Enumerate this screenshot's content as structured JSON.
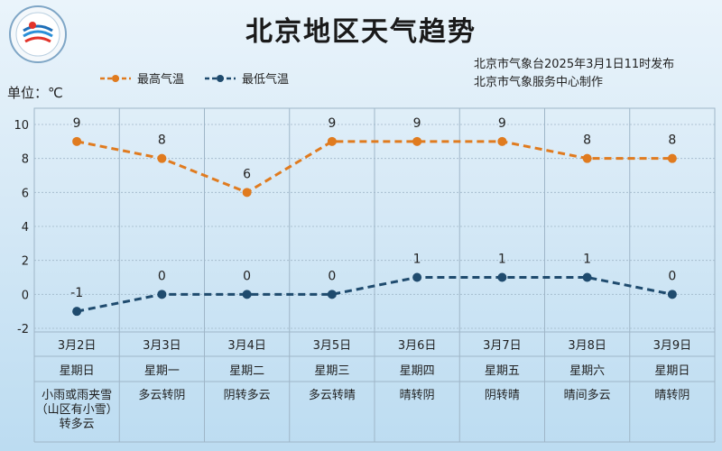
{
  "header": {
    "title": "北京地区天气趋势",
    "publisher_line1": "北京市气象台2025年3月1日11时发布",
    "publisher_line2": "北京市气象服务中心制作",
    "unit_label": "单位：℃"
  },
  "colors": {
    "high": "#e07b1f",
    "low": "#1f4b6e",
    "grid": "#9fb6c8"
  },
  "icons": [
    "meteorological-service-logo-icon"
  ],
  "chart_data": {
    "type": "line",
    "categories": [
      "3月2日",
      "3月3日",
      "3月4日",
      "3月5日",
      "3月6日",
      "3月7日",
      "3月8日",
      "3月9日"
    ],
    "weekdays": [
      "星期日",
      "星期一",
      "星期二",
      "星期三",
      "星期四",
      "星期五",
      "星期六",
      "星期日"
    ],
    "weather": [
      "小雨或雨夹雪\n（山区有小雪）\n转多云",
      "多云转阴",
      "阴转多云",
      "多云转晴",
      "晴转阴",
      "阴转晴",
      "晴间多云",
      "晴转阴"
    ],
    "series": [
      {
        "name": "最高气温",
        "values": [
          9,
          8,
          6,
          9,
          9,
          9,
          8,
          8
        ]
      },
      {
        "name": "最低气温",
        "values": [
          -1,
          0,
          0,
          0,
          1,
          1,
          1,
          0
        ]
      }
    ],
    "title": "北京地区天气趋势",
    "ylabel": "单位：℃",
    "ylim": [
      -2,
      10
    ],
    "yticks": [
      "-2",
      "0",
      "2",
      "4",
      "6",
      "8",
      "10"
    ],
    "grid": true,
    "legend": "top-left"
  }
}
